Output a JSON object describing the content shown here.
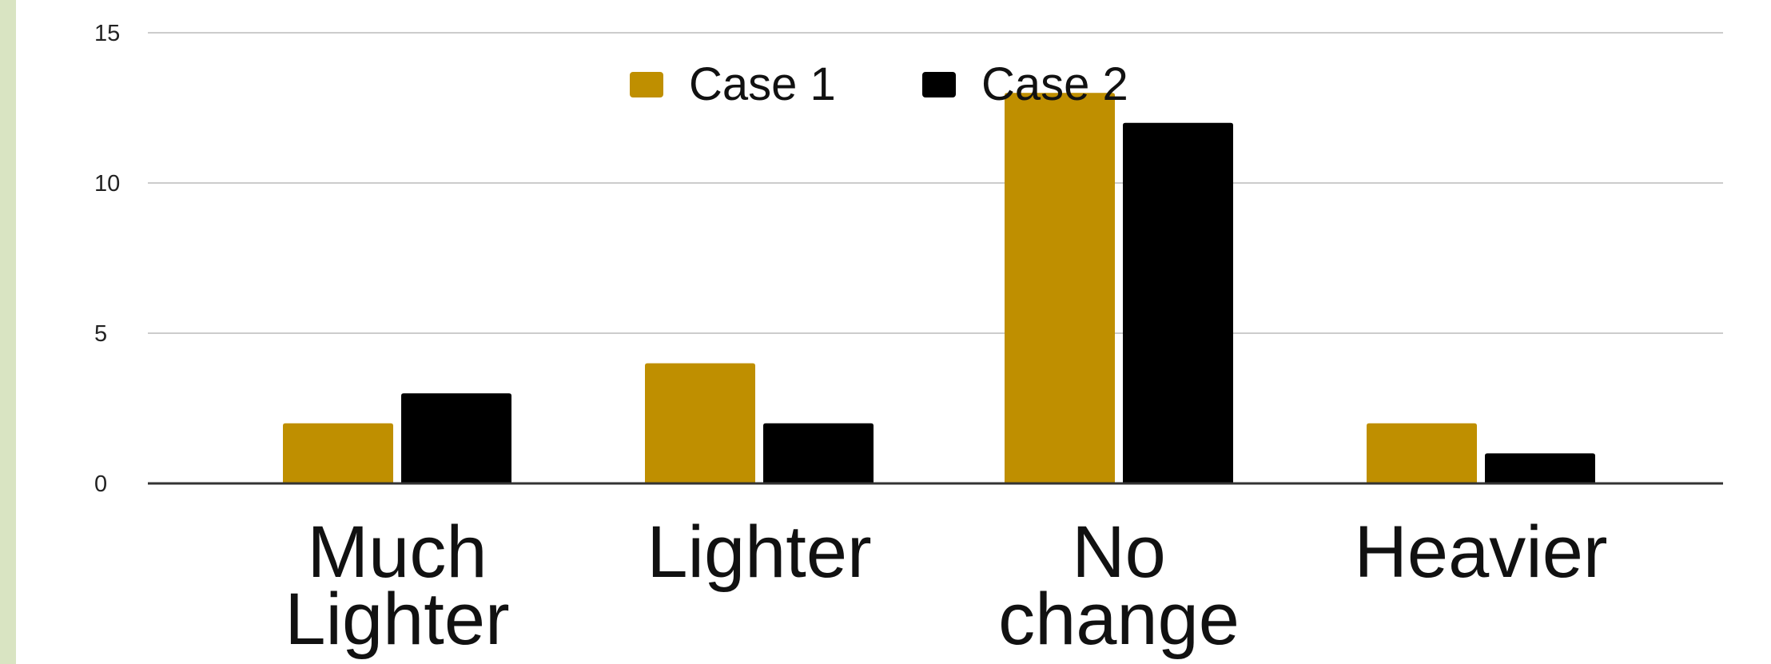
{
  "chart_data": {
    "type": "bar",
    "categories": [
      [
        "Much",
        "Lighter"
      ],
      [
        "Lighter"
      ],
      [
        "No",
        "change"
      ],
      [
        "Heavier"
      ]
    ],
    "series": [
      {
        "name": "Case 1",
        "color": "#bf8f00",
        "values": [
          2,
          4,
          13,
          2
        ]
      },
      {
        "name": "Case 2",
        "color": "#000000",
        "values": [
          3,
          2,
          12,
          1
        ]
      }
    ],
    "title": "",
    "xlabel": "",
    "ylabel": "",
    "ylim": [
      0,
      15
    ],
    "yticks": [
      0,
      5,
      10,
      15
    ],
    "grid": true,
    "legend_position": "top-center"
  },
  "colors": {
    "left_strip": "#d9e4c2",
    "grid": "#cccccc",
    "axis": "#333333"
  }
}
